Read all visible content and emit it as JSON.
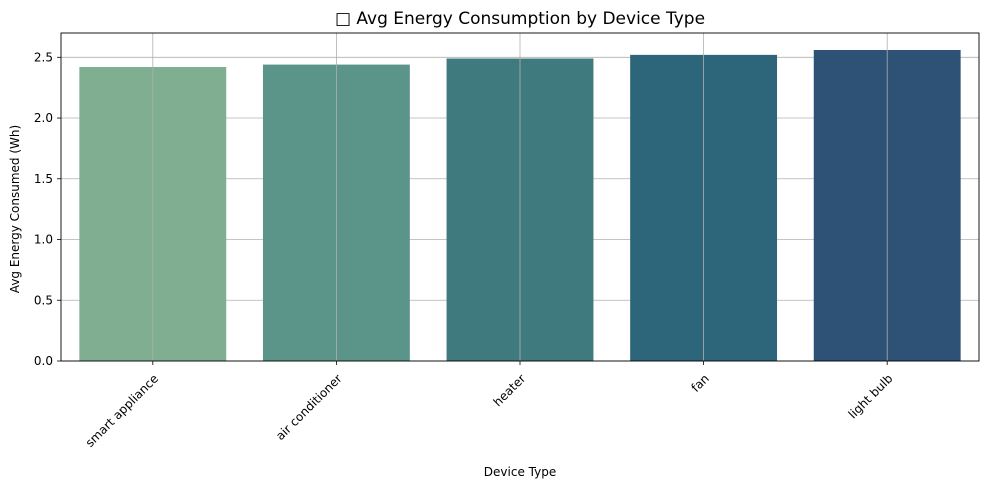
{
  "chart_data": {
    "type": "bar",
    "title": "□ Avg Energy Consumption by Device Type",
    "xlabel": "Device Type",
    "ylabel": "Avg Energy Consumed (Wh)",
    "categories": [
      "smart appliance",
      "air conditioner",
      "heater",
      "fan",
      "light bulb"
    ],
    "values": [
      2.42,
      2.44,
      2.49,
      2.52,
      2.56
    ],
    "ylim": [
      0,
      2.7
    ],
    "yticks": [
      "0.0",
      "0.5",
      "1.0",
      "1.5",
      "2.0",
      "2.5"
    ],
    "grid": true,
    "x_tick_rotation_deg": 45,
    "colors": [
      "#7fae91",
      "#5b9489",
      "#3f7a7e",
      "#2d667b",
      "#2e5176"
    ],
    "grid_color": "#b0b0b0",
    "axis_color": "#000000"
  }
}
